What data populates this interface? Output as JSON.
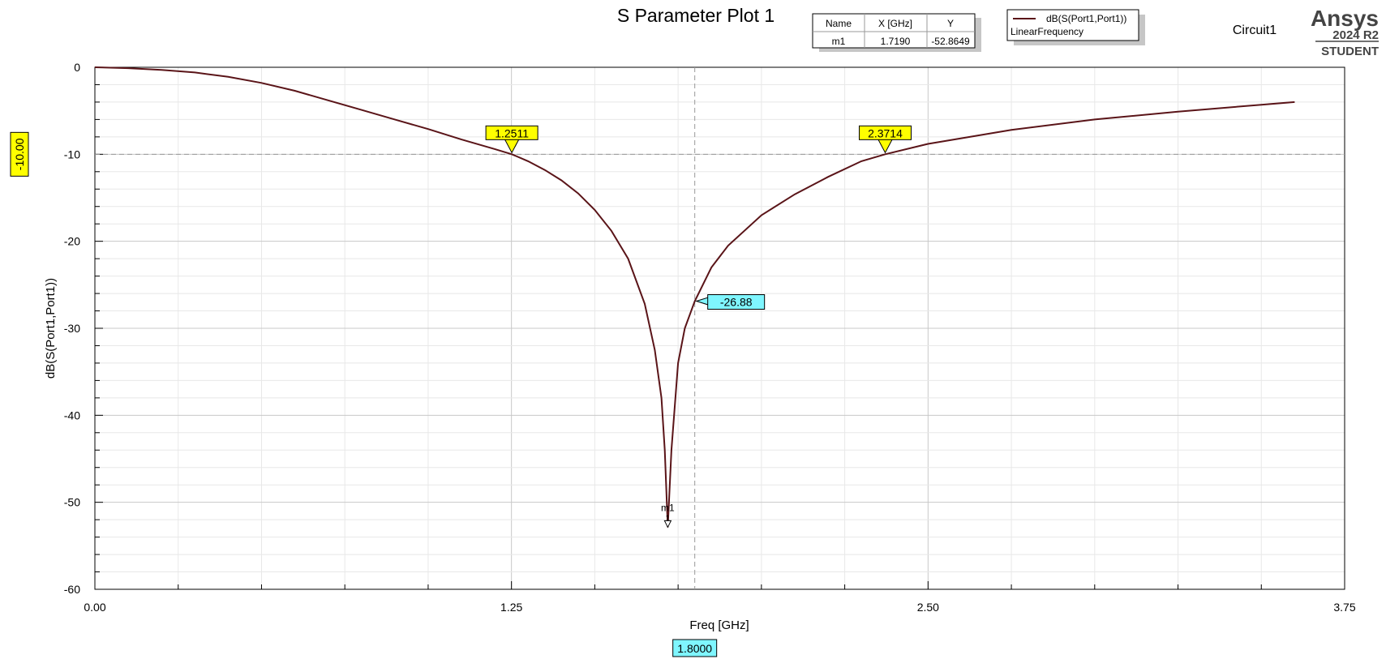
{
  "colors": {
    "trace": "#5a1418",
    "marker_bg": "#ffff00",
    "cursor_bg": "#7ff6ff",
    "grid_major": "#c8c8c8",
    "grid_minor": "#e8e8e8",
    "dashed": "#999999"
  },
  "header": {
    "circuit": "Circuit1",
    "brand": "Ansys",
    "version": "2024 R2",
    "edition": "STUDENT"
  },
  "marker_table": {
    "headers": [
      "Name",
      "X [GHz]",
      "Y"
    ],
    "rows": [
      [
        "m1",
        "1.7190",
        "-52.8649"
      ]
    ]
  },
  "legend": {
    "series": "dB(S(Port1,Port1))",
    "setup": "LinearFrequency"
  },
  "labels": {
    "x_cursor": "1.8000",
    "y_cursor": "-10.00",
    "cross_left": "1.2511",
    "cross_right": "2.3714",
    "cursor_value": "-26.88",
    "marker_name": "m1",
    "marker_index": "1"
  },
  "chart_data": {
    "type": "line",
    "title": "S Parameter Plot 1",
    "xlabel": "Freq [GHz]",
    "ylabel": "dB(S(Port1,Port1))",
    "xlim": [
      0,
      3.75
    ],
    "ylim": [
      -60,
      0
    ],
    "x_ticks": [
      0,
      1.25,
      2.5,
      3.75
    ],
    "x_tick_labels": [
      "0.00",
      "1.25",
      "2.50",
      "3.75"
    ],
    "y_ticks": [
      0,
      -10,
      -20,
      -30,
      -40,
      -50,
      -60
    ],
    "y_tick_labels": [
      "0",
      "-10",
      "-20",
      "-30",
      "-40",
      "-50",
      "-60"
    ],
    "grid": true,
    "legend_position": "top",
    "series": [
      {
        "name": "dB(S(Port1,Port1))",
        "x": [
          0,
          0.1,
          0.2,
          0.3,
          0.4,
          0.5,
          0.6,
          0.7,
          0.8,
          0.9,
          1.0,
          1.1,
          1.2,
          1.2511,
          1.3,
          1.35,
          1.4,
          1.45,
          1.5,
          1.55,
          1.6,
          1.65,
          1.68,
          1.7,
          1.71,
          1.719,
          1.73,
          1.75,
          1.77,
          1.8,
          1.85,
          1.9,
          2.0,
          2.1,
          2.2,
          2.3,
          2.3714,
          2.5,
          2.75,
          3.0,
          3.25,
          3.5,
          3.6
        ],
        "y": [
          0,
          -0.1,
          -0.3,
          -0.6,
          -1.1,
          -1.8,
          -2.7,
          -3.8,
          -4.9,
          -6.0,
          -7.1,
          -8.3,
          -9.4,
          -10.0,
          -10.8,
          -11.8,
          -13.0,
          -14.5,
          -16.4,
          -18.8,
          -22.0,
          -27.2,
          -32.5,
          -38.0,
          -44.0,
          -52.86,
          -44.0,
          -34.0,
          -30.0,
          -26.88,
          -23.0,
          -20.5,
          -17.0,
          -14.6,
          -12.6,
          -10.8,
          -10.0,
          -8.8,
          -7.2,
          -6.0,
          -5.1,
          -4.3,
          -4.0
        ]
      }
    ],
    "markers": [
      {
        "name": "m1",
        "x": 1.719,
        "y": -52.8649
      }
    ],
    "x_cursor": 1.8,
    "y_cursor": -10,
    "crossings": [
      1.2511,
      2.3714
    ],
    "cursor_value": -26.88
  }
}
